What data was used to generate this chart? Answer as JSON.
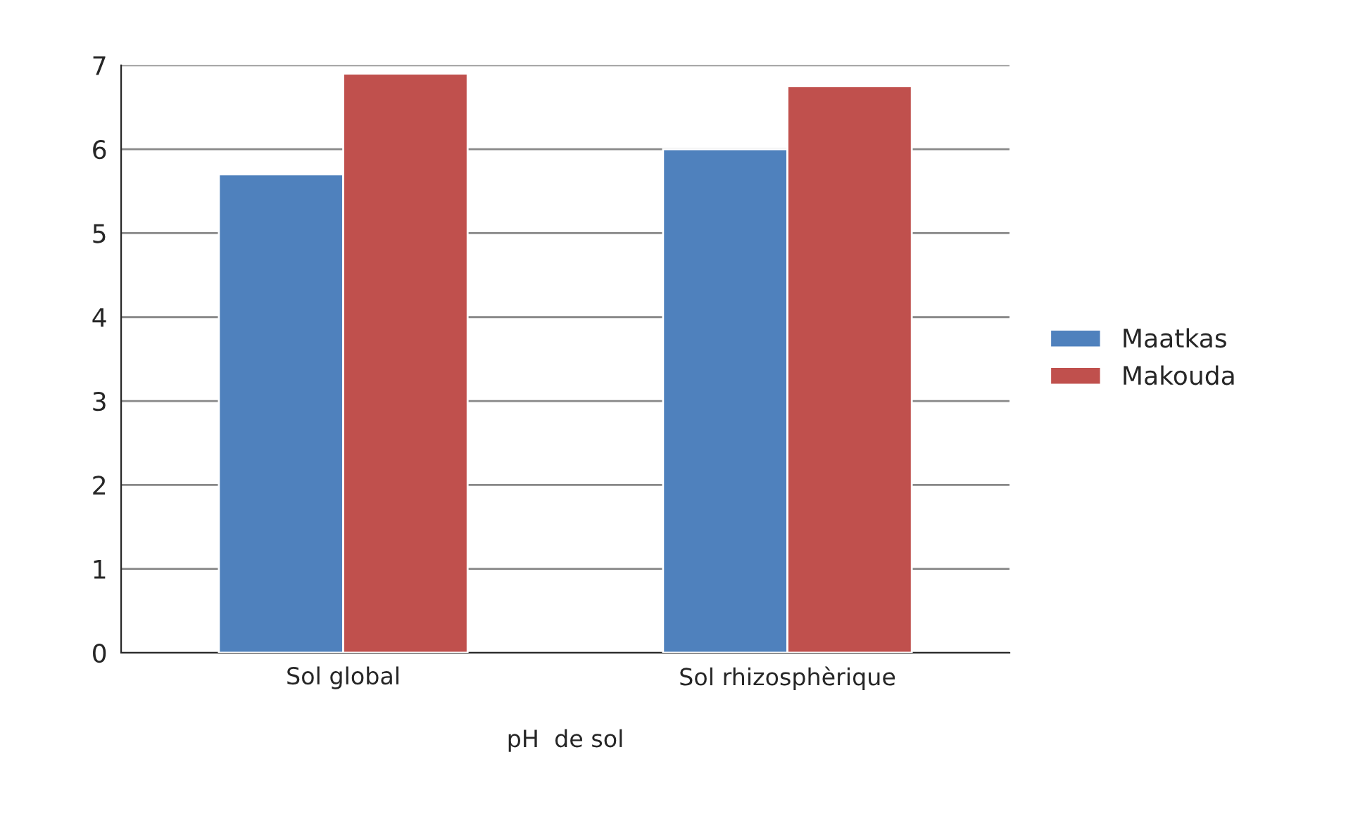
{
  "chart_data": {
    "type": "bar",
    "xlabel": "pH  de sol",
    "categories": [
      "Sol global",
      "Sol rhizosphèrique"
    ],
    "series": [
      {
        "name": "Maatkas",
        "color": "#4f81bd",
        "values": [
          5.7,
          6.0
        ]
      },
      {
        "name": "Makouda",
        "color": "#c0504d",
        "values": [
          6.9,
          6.75
        ]
      }
    ],
    "ylim": [
      0,
      7
    ],
    "yticks": [
      0,
      1,
      2,
      3,
      4,
      5,
      6,
      7
    ],
    "grid": "y",
    "legend": "right"
  }
}
